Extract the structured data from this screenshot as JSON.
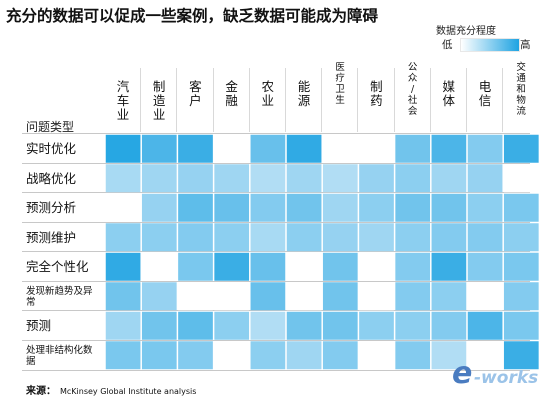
{
  "title": "充分的数据可以促成一些案例，缺乏数据可能成为障碍",
  "legend": {
    "title": "数据充分程度",
    "low": "低",
    "high": "高",
    "low_color": "#ffffff",
    "high_color": "#1ea3e2"
  },
  "source": {
    "label": "来源：",
    "text": "McKinsey Global Institute analysis"
  },
  "watermark": "e-works",
  "chart_data": {
    "type": "heatmap",
    "title": "充分的数据可以促成一些案例，缺乏数据可能成为障碍",
    "ylabel": "问题类型",
    "columns": [
      "汽车业",
      "制造业",
      "客户",
      "金融",
      "农业",
      "能源",
      "医疗卫生",
      "制药",
      "公众/社会",
      "媒体",
      "电信",
      "交通和物流"
    ],
    "rows": [
      "实时优化",
      "战略优化",
      "预测分析",
      "预测维护",
      "完全个性化",
      "发现新趋势及异常",
      "预测",
      "处理非结构化数据"
    ],
    "scale": {
      "min": 0,
      "max": 1,
      "min_label": "低",
      "max_label": "高"
    },
    "values": [
      [
        0.95,
        0.75,
        0.85,
        0.0,
        0.6,
        0.9,
        0.0,
        0.0,
        0.55,
        0.75,
        0.45,
        0.85
      ],
      [
        0.25,
        0.3,
        0.35,
        0.3,
        0.2,
        0.3,
        0.2,
        0.35,
        0.4,
        0.3,
        0.35,
        0.0
      ],
      [
        0.0,
        0.35,
        0.65,
        0.6,
        0.45,
        0.55,
        0.3,
        0.4,
        0.55,
        0.55,
        0.4,
        0.5
      ],
      [
        0.4,
        0.4,
        0.45,
        0.4,
        0.25,
        0.4,
        0.35,
        0.3,
        0.4,
        0.45,
        0.45,
        0.4
      ],
      [
        0.9,
        0.0,
        0.5,
        0.85,
        0.6,
        0.0,
        0.55,
        0.0,
        0.45,
        0.85,
        0.45,
        0.5
      ],
      [
        0.55,
        0.35,
        0.0,
        0.0,
        0.6,
        0.0,
        0.55,
        0.0,
        0.45,
        0.4,
        0.0,
        0.45
      ],
      [
        0.3,
        0.55,
        0.65,
        0.4,
        0.2,
        0.55,
        0.55,
        0.4,
        0.4,
        0.45,
        0.75,
        0.5
      ],
      [
        0.5,
        0.5,
        0.45,
        0.0,
        0.4,
        0.3,
        0.45,
        0.0,
        0.45,
        0.2,
        0.0,
        0.85
      ]
    ]
  }
}
